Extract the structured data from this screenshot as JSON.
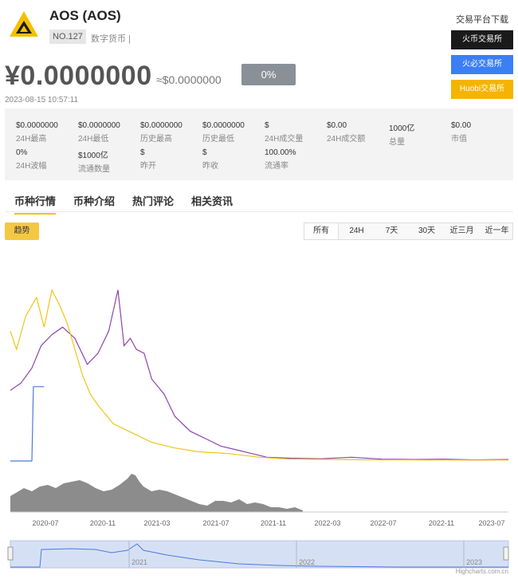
{
  "coin": {
    "title": "AOS (AOS)",
    "rank": "NO.127",
    "tag": "数字货币 |",
    "price": "¥0.0000000",
    "price_usd": "≈$0.0000000",
    "change": "0%",
    "timestamp": "2023-08-15 10:57:11"
  },
  "download": {
    "title": "交易平台下载",
    "exchanges": [
      "火币交易所",
      "火必交易所",
      "Huobi交易所"
    ]
  },
  "stats": [
    {
      "value": "$0.0000000",
      "label": "24H最高"
    },
    {
      "value": "$0.0000000",
      "label": "24H最低"
    },
    {
      "value": "$0.0000000",
      "label": "历史最高"
    },
    {
      "value": "$0.0000000",
      "label": "历史最低"
    },
    {
      "value": "$",
      "label": "24H成交量"
    },
    {
      "value": "$0.00",
      "label": "24H成交额"
    },
    {
      "value": "1000亿",
      "label": "总量"
    },
    {
      "value": "$0.00",
      "label": "市值"
    },
    {
      "value": "0%",
      "label": "24H波幅"
    },
    {
      "value": "$1000亿",
      "label": "流通数量"
    },
    {
      "value": "$",
      "label": "昨开"
    },
    {
      "value": "$",
      "label": "昨收"
    },
    {
      "value": "100.00%",
      "label": "流通率"
    }
  ],
  "tabs": [
    "币种行情",
    "币种介绍",
    "热门评论",
    "相关资讯"
  ],
  "trend_label": "趋势",
  "ranges": [
    "所有",
    "24H",
    "7天",
    "30天",
    "近三月",
    "近一年"
  ],
  "colors": {
    "purple": "#8e44ad",
    "yellow": "#f0c419",
    "blue": "#4a7bdc",
    "volume": "#8c8c8c",
    "navigator_fill": "#d6e0f5"
  },
  "chart_data": {
    "type": "line",
    "x_ticks": [
      "2020-07",
      "2020-11",
      "2021-03",
      "2021-07",
      "2021-11",
      "2022-03",
      "2022-07",
      "2022-11",
      "2023-07"
    ],
    "navigator_labels": [
      "2021",
      "2022",
      "2023"
    ],
    "credit": "Highcharts.com.cn",
    "series": [
      {
        "color": "#8e44ad",
        "x": [
          2020.38,
          2020.45,
          2020.52,
          2020.58,
          2020.65,
          2020.72,
          2020.8,
          2020.88,
          2020.95,
          2021.02,
          2021.08,
          2021.12,
          2021.16,
          2021.2,
          2021.25,
          2021.3,
          2021.38,
          2021.45,
          2021.55,
          2021.65,
          2021.75,
          2021.85,
          2021.95,
          2022.05,
          2022.2,
          2022.4,
          2022.6,
          2022.8,
          2023.0,
          2023.2,
          2023.4,
          2023.62
        ],
        "values": [
          0.38,
          0.42,
          0.5,
          0.62,
          0.68,
          0.72,
          0.66,
          0.52,
          0.58,
          0.7,
          0.92,
          0.62,
          0.66,
          0.6,
          0.58,
          0.44,
          0.36,
          0.24,
          0.16,
          0.12,
          0.08,
          0.06,
          0.04,
          0.02,
          0.015,
          0.012,
          0.02,
          0.01,
          0.008,
          0.01,
          0.006,
          0.008
        ]
      },
      {
        "color": "#f0c419",
        "x": [
          2020.38,
          2020.42,
          2020.48,
          2020.55,
          2020.6,
          2020.65,
          2020.7,
          2020.75,
          2020.8,
          2020.85,
          2020.9,
          2020.95,
          2021.05,
          2021.15,
          2021.3,
          2021.45,
          2021.6,
          2021.8,
          2022.0,
          2022.2,
          2022.5,
          2022.8,
          2023.1,
          2023.62
        ],
        "values": [
          0.7,
          0.6,
          0.78,
          0.88,
          0.72,
          0.92,
          0.84,
          0.74,
          0.6,
          0.46,
          0.36,
          0.3,
          0.2,
          0.16,
          0.1,
          0.07,
          0.05,
          0.04,
          0.02,
          0.01,
          0.008,
          0.006,
          0.005,
          0.005
        ]
      },
      {
        "color": "#4a7bdc",
        "x": [
          2020.38,
          2020.52,
          2020.53,
          2020.6
        ],
        "values": [
          0.0,
          0.0,
          0.4,
          0.4
        ]
      }
    ]
  }
}
